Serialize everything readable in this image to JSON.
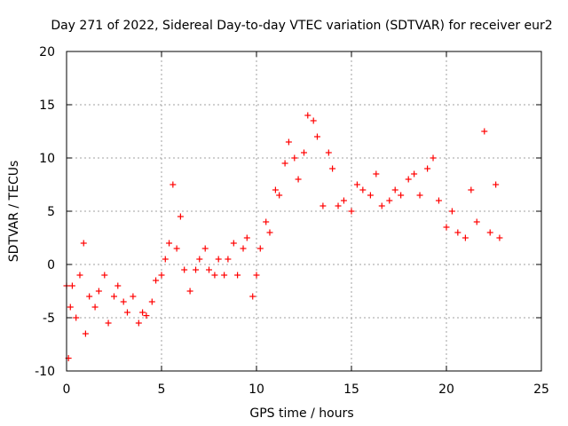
{
  "chart_data": {
    "type": "scatter",
    "title": "Day 271 of 2022, Sidereal Day-to-day VTEC variation (SDTVAR) for receiver eur2",
    "xlabel": "GPS time / hours",
    "ylabel": "SDTVAR / TECUs",
    "xlim": [
      0,
      25
    ],
    "ylim": [
      -10,
      20
    ],
    "x_ticks": [
      0,
      5,
      10,
      15,
      20,
      25
    ],
    "y_ticks": [
      -10,
      -5,
      0,
      5,
      10,
      15,
      20
    ],
    "x_tick_labels": [
      "0",
      "5",
      "10",
      "15",
      "20",
      "25"
    ],
    "y_tick_labels": [
      "-10",
      "-5",
      "0",
      "5",
      "10",
      "15",
      "20"
    ],
    "grid": true,
    "marker": "plus",
    "series_color": "#ff0000",
    "series": [
      {
        "name": "SDTVAR",
        "x": [
          0.0,
          0.1,
          0.2,
          0.3,
          0.5,
          0.7,
          0.9,
          1.0,
          1.2,
          1.5,
          1.7,
          2.0,
          2.2,
          2.5,
          2.7,
          3.0,
          3.2,
          3.5,
          3.8,
          4.0,
          4.2,
          4.5,
          4.7,
          5.0,
          5.2,
          5.4,
          5.6,
          5.8,
          6.0,
          6.2,
          6.5,
          6.8,
          7.0,
          7.3,
          7.5,
          7.8,
          8.0,
          8.3,
          8.5,
          8.8,
          9.0,
          9.3,
          9.5,
          9.8,
          10.0,
          10.2,
          10.5,
          10.7,
          11.0,
          11.2,
          11.5,
          11.7,
          12.0,
          12.2,
          12.5,
          12.7,
          13.0,
          13.2,
          13.5,
          13.8,
          14.0,
          14.3,
          14.6,
          15.0,
          15.3,
          15.6,
          16.0,
          16.3,
          16.6,
          17.0,
          17.3,
          17.6,
          18.0,
          18.3,
          18.6,
          19.0,
          19.3,
          19.6,
          20.0,
          20.3,
          20.6,
          21.0,
          21.3,
          21.6,
          22.0,
          22.3,
          22.6,
          22.8
        ],
        "y": [
          -2.0,
          -8.8,
          -4.0,
          -2.0,
          -5.0,
          -1.0,
          2.0,
          -6.5,
          -3.0,
          -4.0,
          -2.5,
          -1.0,
          -5.5,
          -3.0,
          -2.0,
          -3.5,
          -4.5,
          -3.0,
          -5.5,
          -4.5,
          -4.8,
          -3.5,
          -1.5,
          -1.0,
          0.5,
          2.0,
          7.5,
          1.5,
          4.5,
          -0.5,
          -2.5,
          -0.5,
          0.5,
          1.5,
          -0.5,
          -1.0,
          0.5,
          -1.0,
          0.5,
          2.0,
          -1.0,
          1.5,
          2.5,
          -3.0,
          -1.0,
          1.5,
          4.0,
          3.0,
          7.0,
          6.5,
          9.5,
          11.5,
          10.0,
          8.0,
          10.5,
          14.0,
          13.5,
          12.0,
          5.5,
          10.5,
          9.0,
          5.5,
          6.0,
          5.0,
          7.5,
          7.0,
          6.5,
          8.5,
          5.5,
          6.0,
          7.0,
          6.5,
          8.0,
          8.5,
          6.5,
          9.0,
          10.0,
          6.0,
          3.5,
          5.0,
          3.0,
          2.5,
          7.0,
          4.0,
          12.5,
          3.0,
          7.5,
          2.5
        ]
      }
    ]
  }
}
